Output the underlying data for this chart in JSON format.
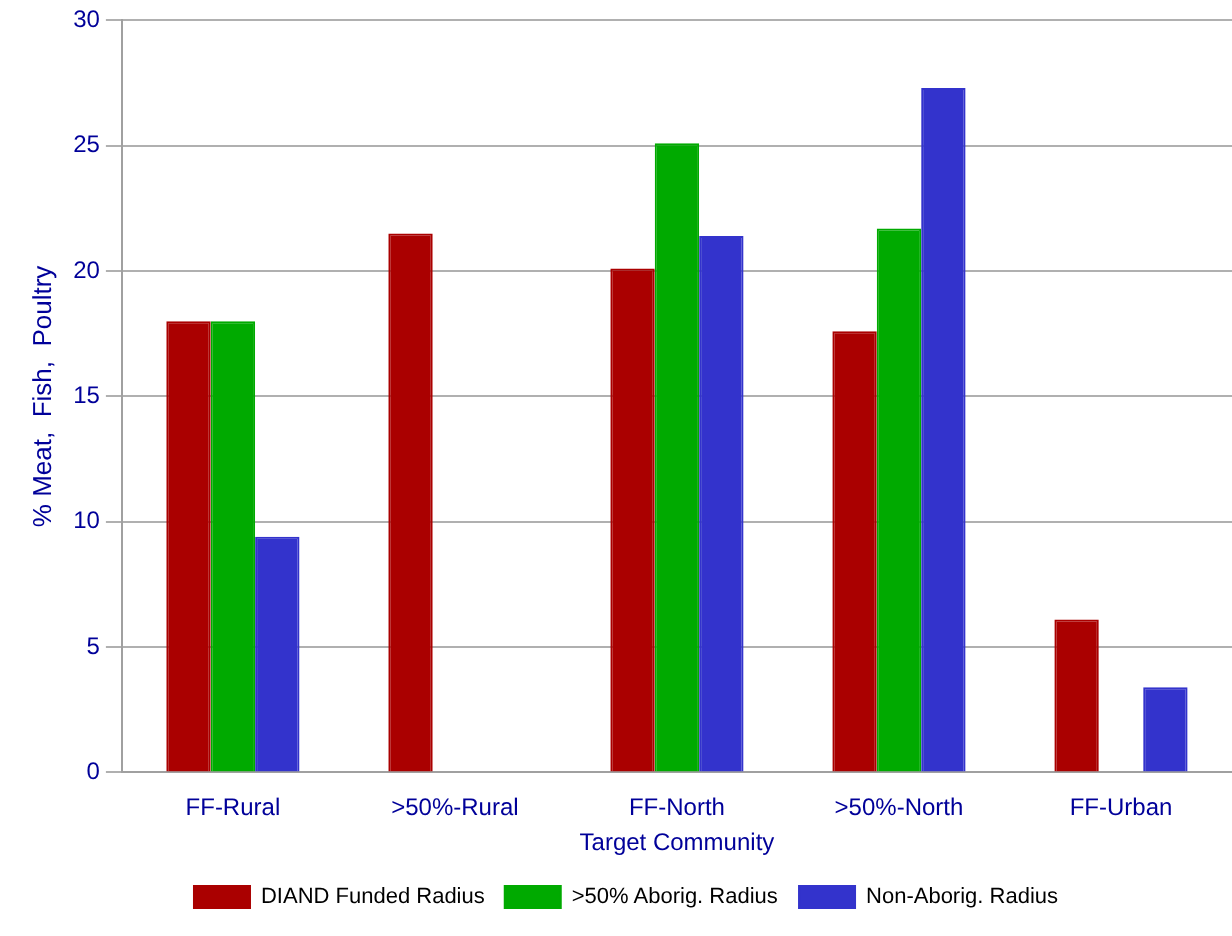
{
  "chart_data": {
    "type": "bar",
    "xlabel": "Target Community",
    "ylabel": "% Meat,  Fish,  Poultry",
    "categories": [
      "FF-Rural",
      ">50%-Rural",
      "FF-North",
      ">50%-North",
      "FF-Urban"
    ],
    "series": [
      {
        "name": "DIAND Funded Radius",
        "color": "#aa0000",
        "values": [
          18.0,
          21.5,
          20.1,
          17.6,
          6.1
        ]
      },
      {
        "name": ">50% Aborig. Radius",
        "color": "#00aa00",
        "values": [
          18.0,
          null,
          25.1,
          21.7,
          null
        ]
      },
      {
        "name": "Non-Aborig. Radius",
        "color": "#3333cc",
        "values": [
          9.4,
          null,
          21.4,
          27.3,
          3.4
        ]
      }
    ],
    "ylim": [
      0,
      30
    ],
    "yticks": [
      0,
      5,
      10,
      15,
      20,
      25,
      30
    ],
    "grid": "y",
    "legend": "bottom"
  }
}
